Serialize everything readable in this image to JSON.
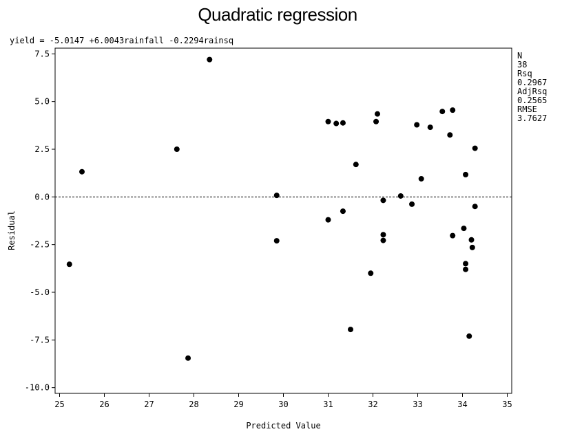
{
  "chart_data": {
    "type": "scatter",
    "title": "Quadratic regression",
    "subtitle": "yield = -5.0147 +6.0043rainfall -0.2294rainsq",
    "xlabel": "Predicted Value",
    "ylabel": "Residual",
    "xlim": [
      24.9,
      35.1
    ],
    "ylim": [
      -10.3,
      7.8
    ],
    "xticks": [
      "25",
      "26",
      "27",
      "28",
      "29",
      "30",
      "31",
      "32",
      "33",
      "34",
      "35"
    ],
    "xtick_values": [
      25,
      26,
      27,
      28,
      29,
      30,
      31,
      32,
      33,
      34,
      35
    ],
    "yticks": [
      "7.5",
      "5.0",
      "2.5",
      "0.0",
      "-2.5",
      "-5.0",
      "-7.5",
      "-10.0"
    ],
    "ytick_values": [
      7.5,
      5.0,
      2.5,
      0.0,
      -2.5,
      -5.0,
      -7.5,
      -10.0
    ],
    "reference_line": 0.0,
    "grid": false,
    "stats": [
      {
        "label": "N",
        "value": "38"
      },
      {
        "label": "Rsq",
        "value": "0.2967"
      },
      {
        "label": "AdjRsq",
        "value": "0.2565"
      },
      {
        "label": "RMSE",
        "value": "3.7627"
      }
    ],
    "points": [
      {
        "x": 25.22,
        "y": -3.53
      },
      {
        "x": 25.5,
        "y": 1.32
      },
      {
        "x": 27.62,
        "y": 2.5
      },
      {
        "x": 27.87,
        "y": -8.45
      },
      {
        "x": 28.35,
        "y": 7.2
      },
      {
        "x": 29.85,
        "y": 0.08
      },
      {
        "x": 29.85,
        "y": -2.3
      },
      {
        "x": 31.0,
        "y": 3.95
      },
      {
        "x": 31.0,
        "y": -1.2
      },
      {
        "x": 31.18,
        "y": 3.85
      },
      {
        "x": 31.33,
        "y": 3.88
      },
      {
        "x": 31.33,
        "y": -0.75
      },
      {
        "x": 31.5,
        "y": -6.95
      },
      {
        "x": 31.62,
        "y": 1.7
      },
      {
        "x": 31.95,
        "y": -4.0
      },
      {
        "x": 32.07,
        "y": 3.95
      },
      {
        "x": 32.1,
        "y": 4.35
      },
      {
        "x": 32.23,
        "y": -0.18
      },
      {
        "x": 32.23,
        "y": -1.98
      },
      {
        "x": 32.23,
        "y": -2.28
      },
      {
        "x": 32.62,
        "y": 0.05
      },
      {
        "x": 32.87,
        "y": -0.38
      },
      {
        "x": 32.98,
        "y": 3.78
      },
      {
        "x": 33.08,
        "y": 0.95
      },
      {
        "x": 33.28,
        "y": 3.65
      },
      {
        "x": 33.55,
        "y": 4.48
      },
      {
        "x": 33.72,
        "y": 3.25
      },
      {
        "x": 33.78,
        "y": 4.55
      },
      {
        "x": 33.78,
        "y": -2.03
      },
      {
        "x": 34.03,
        "y": -1.65
      },
      {
        "x": 34.07,
        "y": 1.17
      },
      {
        "x": 34.07,
        "y": -3.5
      },
      {
        "x": 34.07,
        "y": -3.8
      },
      {
        "x": 34.15,
        "y": -7.3
      },
      {
        "x": 34.2,
        "y": -2.25
      },
      {
        "x": 34.22,
        "y": -2.65
      },
      {
        "x": 34.28,
        "y": 2.55
      },
      {
        "x": 34.28,
        "y": -0.5
      }
    ]
  }
}
